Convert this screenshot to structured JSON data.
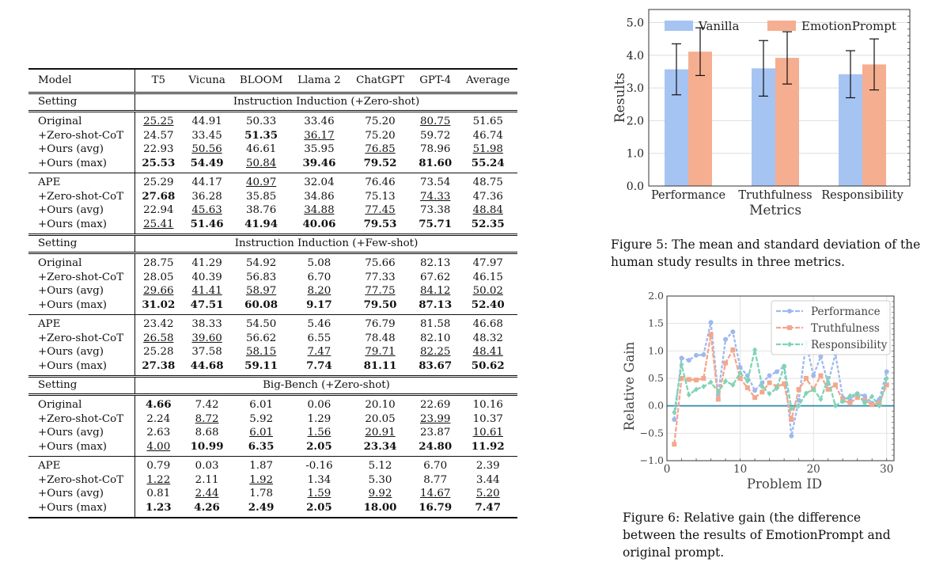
{
  "table": {
    "columns": [
      "Model",
      "T5",
      "Vicuna",
      "BLOOM",
      "Llama 2",
      "ChatGPT",
      "GPT-4",
      "Average"
    ],
    "setting_label": "Setting",
    "sections": [
      {
        "title": "Instruction Induction (+Zero-shot)",
        "groups": [
          [
            {
              "label": "Original",
              "values": [
                "25.25",
                "44.91",
                "50.33",
                "33.46",
                "75.20",
                "80.75",
                "51.65"
              ],
              "style": [
                "u",
                "",
                "",
                "",
                "",
                "u",
                ""
              ]
            },
            {
              "label": "+Zero-shot-CoT",
              "values": [
                "24.57",
                "33.45",
                "51.35",
                "36.17",
                "75.20",
                "59.72",
                "46.74"
              ],
              "style": [
                "",
                "",
                "b",
                "u",
                "",
                "",
                ""
              ]
            },
            {
              "label": "+Ours (avg)",
              "values": [
                "22.93",
                "50.56",
                "46.61",
                "35.95",
                "76.85",
                "78.96",
                "51.98"
              ],
              "style": [
                "",
                "u",
                "",
                "",
                "u",
                "",
                "u"
              ]
            },
            {
              "label": "+Ours (max)",
              "values": [
                "25.53",
                "54.49",
                "50.84",
                "39.46",
                "79.52",
                "81.60",
                "55.24"
              ],
              "style": [
                "b",
                "b",
                "u",
                "b",
                "b",
                "b",
                "b"
              ]
            }
          ],
          [
            {
              "label": "APE",
              "values": [
                "25.29",
                "44.17",
                "40.97",
                "32.04",
                "76.46",
                "73.54",
                "48.75"
              ],
              "style": [
                "",
                "",
                "u",
                "",
                "",
                "",
                ""
              ]
            },
            {
              "label": "+Zero-shot-CoT",
              "values": [
                "27.68",
                "36.28",
                "35.85",
                "34.86",
                "75.13",
                "74.33",
                "47.36"
              ],
              "style": [
                "b",
                "",
                "",
                "",
                "",
                "u",
                ""
              ]
            },
            {
              "label": "+Ours (avg)",
              "values": [
                "22.94",
                "45.63",
                "38.76",
                "34.88",
                "77.45",
                "73.38",
                "48.84"
              ],
              "style": [
                "",
                "u",
                "",
                "u",
                "u",
                "",
                "u"
              ]
            },
            {
              "label": "+Ours (max)",
              "values": [
                "25.41",
                "51.46",
                "41.94",
                "40.06",
                "79.53",
                "75.71",
                "52.35"
              ],
              "style": [
                "u",
                "b",
                "b",
                "b",
                "b",
                "b",
                "b"
              ]
            }
          ]
        ]
      },
      {
        "title": "Instruction Induction (+Few-shot)",
        "groups": [
          [
            {
              "label": "Original",
              "values": [
                "28.75",
                "41.29",
                "54.92",
                "5.08",
                "75.66",
                "82.13",
                "47.97"
              ],
              "style": [
                "",
                "",
                "",
                "",
                "",
                "",
                ""
              ]
            },
            {
              "label": "+Zero-shot-CoT",
              "values": [
                "28.05",
                "40.39",
                "56.83",
                "6.70",
                "77.33",
                "67.62",
                "46.15"
              ],
              "style": [
                "",
                "",
                "",
                "",
                "",
                "",
                ""
              ]
            },
            {
              "label": "+Ours (avg)",
              "values": [
                "29.66",
                "41.41",
                "58.97",
                "8.20",
                "77.75",
                "84.12",
                "50.02"
              ],
              "style": [
                "u",
                "u",
                "u",
                "u",
                "u",
                "u",
                "u"
              ]
            },
            {
              "label": "+Ours (max)",
              "values": [
                "31.02",
                "47.51",
                "60.08",
                "9.17",
                "79.50",
                "87.13",
                "52.40"
              ],
              "style": [
                "b",
                "b",
                "b",
                "b",
                "b",
                "b",
                "b"
              ]
            }
          ],
          [
            {
              "label": "APE",
              "values": [
                "23.42",
                "38.33",
                "54.50",
                "5.46",
                "76.79",
                "81.58",
                "46.68"
              ],
              "style": [
                "",
                "",
                "",
                "",
                "",
                "",
                ""
              ]
            },
            {
              "label": "+Zero-shot-CoT",
              "values": [
                "26.58",
                "39.60",
                "56.62",
                "6.55",
                "78.48",
                "82.10",
                "48.32"
              ],
              "style": [
                "u",
                "u",
                "",
                "",
                "",
                "",
                ""
              ]
            },
            {
              "label": "+Ours (avg)",
              "values": [
                "25.28",
                "37.58",
                "58.15",
                "7.47",
                "79.71",
                "82.25",
                "48.41"
              ],
              "style": [
                "",
                "",
                "u",
                "u",
                "u",
                "u",
                "u"
              ]
            },
            {
              "label": "+Ours (max)",
              "values": [
                "27.38",
                "44.68",
                "59.11",
                "7.74",
                "81.11",
                "83.67",
                "50.62"
              ],
              "style": [
                "b",
                "b",
                "b",
                "b",
                "b",
                "b",
                "b"
              ]
            }
          ]
        ]
      },
      {
        "title": "Big-Bench (+Zero-shot)",
        "groups": [
          [
            {
              "label": "Original",
              "values": [
                "4.66",
                "7.42",
                "6.01",
                "0.06",
                "20.10",
                "22.69",
                "10.16"
              ],
              "style": [
                "b",
                "",
                "",
                "",
                "",
                "",
                ""
              ]
            },
            {
              "label": "+Zero-shot-CoT",
              "values": [
                "2.24",
                "8.72",
                "5.92",
                "1.29",
                "20.05",
                "23.99",
                "10.37"
              ],
              "style": [
                "",
                "u",
                "",
                "",
                "",
                "u",
                ""
              ]
            },
            {
              "label": "+Ours (avg)",
              "values": [
                "2.63",
                "8.68",
                "6.01",
                "1.56",
                "20.91",
                "23.87",
                "10.61"
              ],
              "style": [
                "",
                "",
                "u",
                "u",
                "u",
                "",
                "u"
              ]
            },
            {
              "label": "+Ours (max)",
              "values": [
                "4.00",
                "10.99",
                "6.35",
                "2.05",
                "23.34",
                "24.80",
                "11.92"
              ],
              "style": [
                "u",
                "b",
                "b",
                "b",
                "b",
                "b",
                "b"
              ]
            }
          ],
          [
            {
              "label": "APE",
              "values": [
                "0.79",
                "0.03",
                "1.87",
                "-0.16",
                "5.12",
                "6.70",
                "2.39"
              ],
              "style": [
                "",
                "",
                "",
                "",
                "",
                "",
                ""
              ]
            },
            {
              "label": "+Zero-shot-CoT",
              "values": [
                "1.22",
                "2.11",
                "1.92",
                "1.34",
                "5.30",
                "8.77",
                "3.44"
              ],
              "style": [
                "u",
                "",
                "u",
                "",
                "",
                "",
                ""
              ]
            },
            {
              "label": "+Ours (avg)",
              "values": [
                "0.81",
                "2.44",
                "1.78",
                "1.59",
                "9.92",
                "14.67",
                "5.20"
              ],
              "style": [
                "",
                "u",
                "",
                "u",
                "u",
                "u",
                "u"
              ]
            },
            {
              "label": "+Ours (max)",
              "values": [
                "1.23",
                "4.26",
                "2.49",
                "2.05",
                "18.00",
                "16.79",
                "7.47"
              ],
              "style": [
                "b",
                "b",
                "b",
                "b",
                "b",
                "b",
                "b"
              ]
            }
          ]
        ]
      }
    ]
  },
  "figure5": {
    "caption": "Figure 5: The mean and standard deviation of the human study results in three metrics."
  },
  "figure6": {
    "caption": "Figure 6: Relative gain (the difference between the results of EmotionPrompt and original prompt."
  },
  "chart_data": [
    {
      "type": "bar",
      "categories": [
        "Performance",
        "Truthfulness",
        "Responsibility"
      ],
      "series": [
        {
          "name": "Vanilla",
          "values": [
            3.57,
            3.6,
            3.42
          ],
          "std": [
            0.78,
            0.85,
            0.72
          ],
          "color": "#a6c4f2"
        },
        {
          "name": "EmotionPrompt",
          "values": [
            4.11,
            3.92,
            3.72
          ],
          "std": [
            0.73,
            0.8,
            0.78
          ],
          "color": "#f5ae90"
        }
      ],
      "xlabel": "Metrics",
      "ylabel": "Results",
      "ylim": [
        0,
        5.4
      ],
      "yticks": [
        0.0,
        1.0,
        2.0,
        3.0,
        4.0,
        5.0
      ],
      "ytick_labels": [
        "0.0",
        "1.0",
        "2.0",
        "3.0",
        "4.0",
        "5.0"
      ],
      "legend": "top",
      "grid": true
    },
    {
      "type": "line",
      "x": [
        1,
        2,
        3,
        4,
        5,
        6,
        7,
        8,
        9,
        10,
        11,
        12,
        13,
        14,
        15,
        16,
        17,
        18,
        19,
        20,
        21,
        22,
        23,
        24,
        25,
        26,
        27,
        28,
        29,
        30
      ],
      "series": [
        {
          "name": "Performance",
          "marker": "circle",
          "color": "#9eb9ee",
          "values": [
            -0.25,
            0.87,
            0.83,
            0.92,
            0.93,
            1.52,
            0.2,
            1.21,
            1.35,
            0.7,
            0.55,
            0.28,
            0.42,
            0.55,
            0.62,
            0.72,
            -0.55,
            0.1,
            1.15,
            0.55,
            0.9,
            0.4,
            0.95,
            0.15,
            0.12,
            0.22,
            0.18,
            0.05,
            0.12,
            0.62
          ]
        },
        {
          "name": "Truthfulness",
          "marker": "square",
          "color": "#f3a78d",
          "values": [
            -0.7,
            0.5,
            0.48,
            0.47,
            0.5,
            1.3,
            0.12,
            0.78,
            1.02,
            0.5,
            0.33,
            0.15,
            0.25,
            0.42,
            0.35,
            0.4,
            -0.25,
            0.3,
            0.5,
            0.3,
            0.55,
            0.3,
            0.38,
            0.1,
            0.05,
            0.15,
            0.1,
            0.02,
            0.05,
            0.38
          ]
        },
        {
          "name": "Responsibility",
          "marker": "diamond",
          "color": "#7fd4b4",
          "values": [
            -0.12,
            0.75,
            0.2,
            0.3,
            0.35,
            0.43,
            0.25,
            0.45,
            0.38,
            0.6,
            0.45,
            1.02,
            0.35,
            0.22,
            0.32,
            0.72,
            -0.05,
            0.0,
            0.23,
            0.3,
            0.12,
            0.5,
            0.0,
            0.08,
            0.18,
            0.22,
            0.05,
            0.17,
            0.0,
            0.5
          ]
        }
      ],
      "xlabel": "Problem ID",
      "ylabel": "Relative Gain",
      "xlim": [
        0,
        31
      ],
      "ylim": [
        -1.0,
        2.0
      ],
      "xticks": [
        0,
        10,
        20,
        30
      ],
      "xtick_labels": [
        "0",
        "10",
        "20",
        "30"
      ],
      "yticks": [
        -1.0,
        -0.5,
        0.0,
        0.5,
        1.0,
        1.5,
        2.0
      ],
      "ytick_labels": [
        "−1.0",
        "−0.5",
        "0.0",
        "0.5",
        "1.0",
        "1.5",
        "2.0"
      ],
      "legend": "top-right",
      "grid": true
    }
  ]
}
